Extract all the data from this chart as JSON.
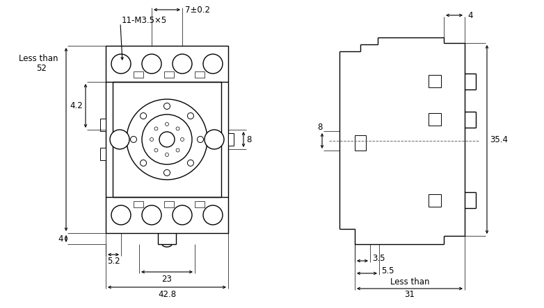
{
  "bg_color": "#ffffff",
  "line_color": "#000000",
  "fs": 8.5,
  "annotations": {
    "label_11M3": "11-M3.5×5",
    "label_7": "7±0.2",
    "label_8": "8",
    "label_less_than": "Less than",
    "label_52": "52",
    "label_4_2": "4.2",
    "label_4_left": "4",
    "label_5_2": "5.2",
    "label_23": "23",
    "label_42_8": "42.8",
    "label_4_right": "4",
    "label_35_4": "35.4",
    "label_3_5": "3.5",
    "label_5_5": "5.5",
    "label_less_than2": "Less than",
    "label_31": "31"
  }
}
